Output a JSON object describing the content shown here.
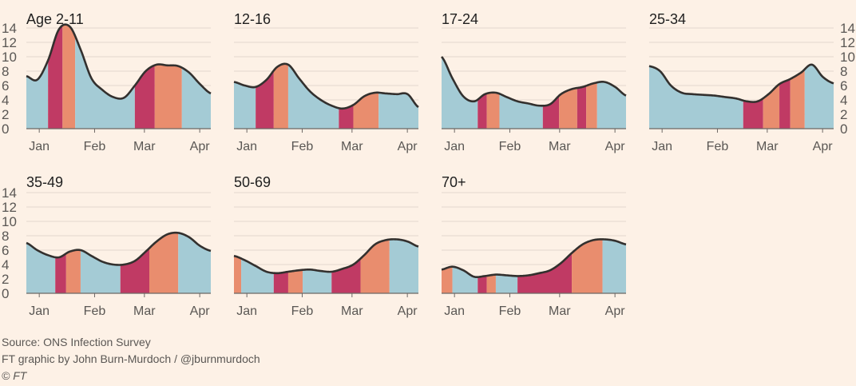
{
  "chart_data": [
    {
      "type": "area",
      "title": "Age 2-11",
      "x_ticks": [
        "Jan",
        "Feb",
        "Mar",
        "Apr"
      ],
      "ylim": [
        0,
        14
      ],
      "y_ticks": [
        0,
        2,
        4,
        6,
        8,
        10,
        12,
        14
      ],
      "x": [
        0,
        6,
        12,
        18,
        24,
        30,
        36,
        42,
        48,
        54,
        60,
        66,
        72,
        78,
        84,
        90,
        96,
        102
      ],
      "values": [
        7.3,
        6.8,
        9.5,
        13.8,
        14.2,
        11.0,
        7.0,
        5.4,
        4.4,
        4.3,
        6.0,
        8.0,
        8.9,
        8.8,
        8.7,
        7.8,
        6.2,
        4.9
      ],
      "segments": [
        [
          "b",
          0,
          12
        ],
        [
          "d",
          12,
          20
        ],
        [
          "o",
          20,
          27
        ],
        [
          "b",
          27,
          60
        ],
        [
          "d",
          60,
          71
        ],
        [
          "o",
          71,
          86
        ],
        [
          "b",
          86,
          102
        ]
      ]
    },
    {
      "type": "area",
      "title": "12-16",
      "x_ticks": [
        "Jan",
        "Feb",
        "Mar",
        "Apr"
      ],
      "ylim": [
        0,
        14
      ],
      "x": [
        0,
        6,
        12,
        18,
        24,
        30,
        36,
        42,
        48,
        54,
        60,
        66,
        72,
        78,
        84,
        90,
        96,
        102
      ],
      "values": [
        6.5,
        6.0,
        5.8,
        6.8,
        8.6,
        8.9,
        7.0,
        5.2,
        4.0,
        3.2,
        2.8,
        3.3,
        4.5,
        5.0,
        4.9,
        4.8,
        4.8,
        3.0
      ],
      "segments": [
        [
          "b",
          0,
          12
        ],
        [
          "d",
          12,
          22
        ],
        [
          "o",
          22,
          30
        ],
        [
          "b",
          30,
          58
        ],
        [
          "d",
          58,
          66
        ],
        [
          "o",
          66,
          80
        ],
        [
          "b",
          80,
          102
        ]
      ]
    },
    {
      "type": "area",
      "title": "17-24",
      "x_ticks": [
        "Jan",
        "Feb",
        "Mar",
        "Apr"
      ],
      "ylim": [
        0,
        14
      ],
      "x": [
        0,
        6,
        12,
        18,
        24,
        30,
        36,
        42,
        48,
        54,
        60,
        66,
        72,
        78,
        84,
        90,
        96,
        102
      ],
      "values": [
        10.0,
        7.0,
        4.5,
        3.8,
        4.8,
        5.0,
        4.4,
        3.8,
        3.5,
        3.2,
        3.4,
        4.8,
        5.5,
        5.8,
        6.3,
        6.5,
        5.8,
        4.6
      ],
      "segments": [
        [
          "b",
          0,
          20
        ],
        [
          "d",
          20,
          25
        ],
        [
          "o",
          25,
          32
        ],
        [
          "b",
          32,
          56
        ],
        [
          "d",
          56,
          65
        ],
        [
          "o",
          65,
          75
        ],
        [
          "d",
          75,
          80
        ],
        [
          "o",
          80,
          86
        ],
        [
          "b",
          86,
          102
        ]
      ]
    },
    {
      "type": "area",
      "title": "25-34",
      "x_ticks": [
        "Jan",
        "Feb",
        "Mar",
        "Apr"
      ],
      "ylim": [
        0,
        14
      ],
      "x": [
        0,
        6,
        12,
        18,
        24,
        30,
        36,
        42,
        48,
        54,
        60,
        66,
        72,
        78,
        84,
        90,
        96,
        102
      ],
      "values": [
        8.7,
        8.0,
        6.0,
        5.0,
        4.8,
        4.7,
        4.6,
        4.4,
        4.2,
        3.8,
        3.8,
        4.8,
        6.2,
        6.9,
        7.8,
        8.9,
        7.2,
        6.3
      ],
      "segments": [
        [
          "b",
          0,
          52
        ],
        [
          "d",
          52,
          63
        ],
        [
          "o",
          63,
          72
        ],
        [
          "d",
          72,
          78
        ],
        [
          "o",
          78,
          86
        ],
        [
          "b",
          86,
          102
        ]
      ]
    },
    {
      "type": "area",
      "title": "35-49",
      "x_ticks": [
        "Jan",
        "Feb",
        "Mar",
        "Apr"
      ],
      "ylim": [
        0,
        14
      ],
      "x": [
        0,
        6,
        12,
        18,
        24,
        30,
        36,
        42,
        48,
        54,
        60,
        66,
        72,
        78,
        84,
        90,
        96,
        102
      ],
      "values": [
        7.0,
        6.0,
        5.3,
        5.0,
        5.8,
        6.0,
        5.2,
        4.4,
        4.0,
        4.0,
        4.5,
        5.8,
        7.2,
        8.2,
        8.4,
        7.8,
        6.6,
        5.9
      ],
      "segments": [
        [
          "b",
          0,
          16
        ],
        [
          "d",
          16,
          22
        ],
        [
          "o",
          22,
          30
        ],
        [
          "b",
          30,
          52
        ],
        [
          "d",
          52,
          68
        ],
        [
          "o",
          68,
          84
        ],
        [
          "b",
          84,
          102
        ]
      ]
    },
    {
      "type": "area",
      "title": "50-69",
      "x_ticks": [
        "Jan",
        "Feb",
        "Mar",
        "Apr"
      ],
      "ylim": [
        0,
        14
      ],
      "x": [
        0,
        6,
        12,
        18,
        24,
        30,
        36,
        42,
        48,
        54,
        60,
        66,
        72,
        78,
        84,
        90,
        96,
        102
      ],
      "values": [
        5.2,
        4.6,
        3.8,
        3.0,
        2.8,
        3.0,
        3.2,
        3.3,
        3.1,
        3.0,
        3.4,
        4.0,
        5.3,
        6.8,
        7.4,
        7.5,
        7.2,
        6.5
      ],
      "segments": [
        [
          "o",
          0,
          4
        ],
        [
          "b",
          4,
          22
        ],
        [
          "d",
          22,
          30
        ],
        [
          "o",
          30,
          38
        ],
        [
          "b",
          38,
          54
        ],
        [
          "d",
          54,
          70
        ],
        [
          "o",
          70,
          86
        ],
        [
          "b",
          86,
          102
        ]
      ]
    },
    {
      "type": "area",
      "title": "70+",
      "x_ticks": [
        "Jan",
        "Feb",
        "Mar",
        "Apr"
      ],
      "ylim": [
        0,
        14
      ],
      "x": [
        0,
        6,
        12,
        18,
        24,
        30,
        36,
        42,
        48,
        54,
        60,
        66,
        72,
        78,
        84,
        90,
        96,
        102
      ],
      "values": [
        3.3,
        3.7,
        3.2,
        2.3,
        2.4,
        2.6,
        2.5,
        2.4,
        2.5,
        2.8,
        3.2,
        4.2,
        5.6,
        6.8,
        7.4,
        7.5,
        7.3,
        6.8
      ],
      "segments": [
        [
          "o",
          0,
          6
        ],
        [
          "b",
          6,
          20
        ],
        [
          "d",
          20,
          25
        ],
        [
          "o",
          25,
          30
        ],
        [
          "b",
          30,
          42
        ],
        [
          "d",
          42,
          72
        ],
        [
          "o",
          72,
          89
        ],
        [
          "b",
          89,
          102
        ]
      ]
    }
  ],
  "colors": {
    "background": "#fdf1e6",
    "blue": "#a4cbd5",
    "dark": "#c03a64",
    "orange": "#e98d6e",
    "line": "#33302e",
    "grid": "#e4d8cd",
    "text": "#5a5754"
  },
  "footer": {
    "source": "Source: ONS Infection Survey",
    "credit": "FT graphic by John Burn-Murdoch / @jburnmurdoch",
    "copyright": "© FT"
  }
}
